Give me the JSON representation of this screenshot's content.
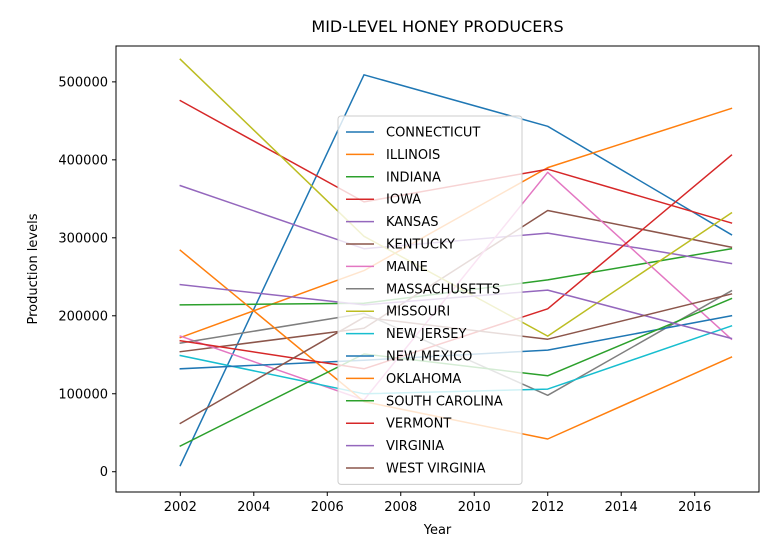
{
  "chart_data": {
    "type": "line",
    "title": "MID-LEVEL HONEY PRODUCERS",
    "xlabel": "Year",
    "ylabel": "Production levels",
    "x": [
      2002,
      2007,
      2012,
      2017
    ],
    "xlim": [
      2000.25,
      2017.75
    ],
    "ylim": [
      -26000,
      546000
    ],
    "xticks": [
      2002,
      2004,
      2006,
      2008,
      2010,
      2012,
      2014,
      2016
    ],
    "yticks": [
      0,
      100000,
      200000,
      300000,
      400000,
      500000
    ],
    "grid": false,
    "legend_position": "center",
    "series": [
      {
        "name": "CONNECTICUT",
        "color": "#1f77b4",
        "values": [
          8000,
          509000,
          443000,
          304000
        ]
      },
      {
        "name": "ILLINOIS",
        "color": "#ff7f0e",
        "values": [
          172000,
          258000,
          390000,
          466000
        ]
      },
      {
        "name": "INDIANA",
        "color": "#2ca02c",
        "values": [
          214000,
          216000,
          246000,
          286000
        ]
      },
      {
        "name": "IOWA",
        "color": "#d62728",
        "values": [
          476000,
          346000,
          388000,
          319000
        ]
      },
      {
        "name": "KANSAS",
        "color": "#9467bd",
        "values": [
          367000,
          286000,
          306000,
          267000
        ]
      },
      {
        "name": "KENTUCKY",
        "color": "#8c564b",
        "values": [
          154000,
          184000,
          335000,
          288000
        ]
      },
      {
        "name": "MAINE",
        "color": "#e377c2",
        "values": [
          174000,
          92000,
          384000,
          170000
        ]
      },
      {
        "name": "MASSACHUSETTS",
        "color": "#7f7f7f",
        "values": [
          165000,
          203000,
          98000,
          232000
        ]
      },
      {
        "name": "MISSOURI",
        "color": "#bcbd22",
        "values": [
          529000,
          302000,
          174000,
          332000
        ]
      },
      {
        "name": "NEW JERSEY",
        "color": "#17becf",
        "values": [
          149000,
          100000,
          106000,
          187000
        ]
      },
      {
        "name": "NEW MEXICO",
        "color": "#1f77b4",
        "values": [
          132000,
          143000,
          156000,
          200000
        ]
      },
      {
        "name": "OKLAHOMA",
        "color": "#ff7f0e",
        "values": [
          284000,
          90000,
          42000,
          147000
        ]
      },
      {
        "name": "SOUTH CAROLINA",
        "color": "#2ca02c",
        "values": [
          33000,
          151000,
          123000,
          222000
        ]
      },
      {
        "name": "VERMONT",
        "color": "#d62728",
        "values": [
          168000,
          132000,
          209000,
          406000
        ]
      },
      {
        "name": "VIRGINIA",
        "color": "#9467bd",
        "values": [
          240000,
          214000,
          233000,
          171000
        ]
      },
      {
        "name": "WEST VIRGINIA",
        "color": "#8c564b",
        "values": [
          62000,
          198000,
          170000,
          228000
        ]
      }
    ]
  }
}
